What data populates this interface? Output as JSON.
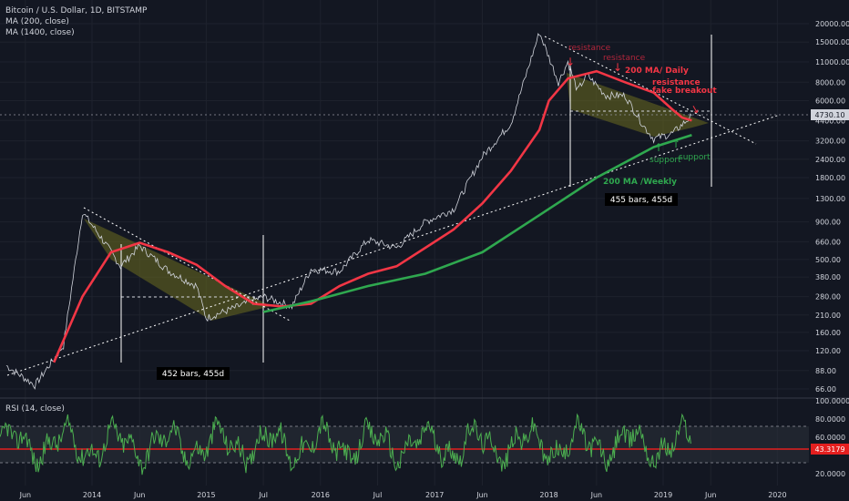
{
  "legend": {
    "symbol": "Bitcoin / U.S. Dollar, 1D, BITSTAMP",
    "ma200": "MA (200, close)",
    "ma1400": "MA (1400, close)"
  },
  "rsi_legend": "RSI (14, close)",
  "price_badge": "4730.10",
  "rsi_badge": "43.3179",
  "colors": {
    "background": "#131722",
    "price_line": "#d1d4dc",
    "ma200": "#f23645",
    "ma1400": "#2fa84f",
    "triangle_fill": "#6b6b1f",
    "rsi": "#4caf50",
    "rsi_midline": "#e41f1f"
  },
  "chart_data": {
    "type": "line",
    "title": "Bitcoin / U.S. Dollar, 1D, BITSTAMP",
    "y_scale": "log",
    "y_ticks": [
      "20000.00",
      "15000.00",
      "11000.00",
      "8000.00",
      "6000.00",
      "4400.00",
      "3200.00",
      "2400.00",
      "1800.00",
      "1300.00",
      "900.00",
      "660.00",
      "500.00",
      "380.00",
      "280.00",
      "210.00",
      "160.00",
      "120.00",
      "88.00",
      "66.00"
    ],
    "x_ticks": [
      "Jun",
      "2014",
      "Jun",
      "2015",
      "Jul",
      "2016",
      "Jul",
      "2017",
      "Jun",
      "2018",
      "Jun",
      "2019",
      "Jun",
      "2020"
    ],
    "series": [
      {
        "name": "MA (200, close)",
        "x": [
          "2013-09",
          "2013-12",
          "2014-03",
          "2014-06",
          "2014-09",
          "2014-12",
          "2015-03",
          "2015-06",
          "2015-09",
          "2015-12",
          "2016-03",
          "2016-06",
          "2016-09",
          "2016-12",
          "2017-03",
          "2017-06",
          "2017-09",
          "2017-12",
          "2018-01",
          "2018-03",
          "2018-06",
          "2018-09",
          "2018-12",
          "2019-02",
          "2019-03",
          "2019-04"
        ],
        "values": [
          100,
          280,
          560,
          650,
          560,
          460,
          330,
          250,
          240,
          250,
          330,
          400,
          450,
          600,
          800,
          1200,
          2000,
          3800,
          6000,
          8500,
          9500,
          8000,
          6800,
          5200,
          4600,
          4400
        ]
      },
      {
        "name": "MA (1400, close)",
        "x": [
          "2015-07",
          "2015-12",
          "2016-06",
          "2016-12",
          "2017-06",
          "2017-12",
          "2018-06",
          "2018-12",
          "2019-04"
        ],
        "values": [
          220,
          260,
          330,
          400,
          560,
          1000,
          1800,
          2900,
          3500
        ]
      }
    ],
    "rsi": {
      "label": "RSI (14, close)",
      "ticks": [
        "100.0000",
        "80.0000",
        "60.0000",
        "20.0000"
      ],
      "last": "43.3179"
    },
    "annotations": {
      "resistance_labels": [
        "resistance",
        "resistance",
        "resistance\nfake breakout"
      ],
      "ma_daily": "200 MA/ Daily",
      "ma_weekly": "200 MA /Weekly",
      "support_labels": [
        "support",
        "support"
      ],
      "measure1": "452 bars, 455d",
      "measure2": "455 bars, 455d"
    }
  }
}
